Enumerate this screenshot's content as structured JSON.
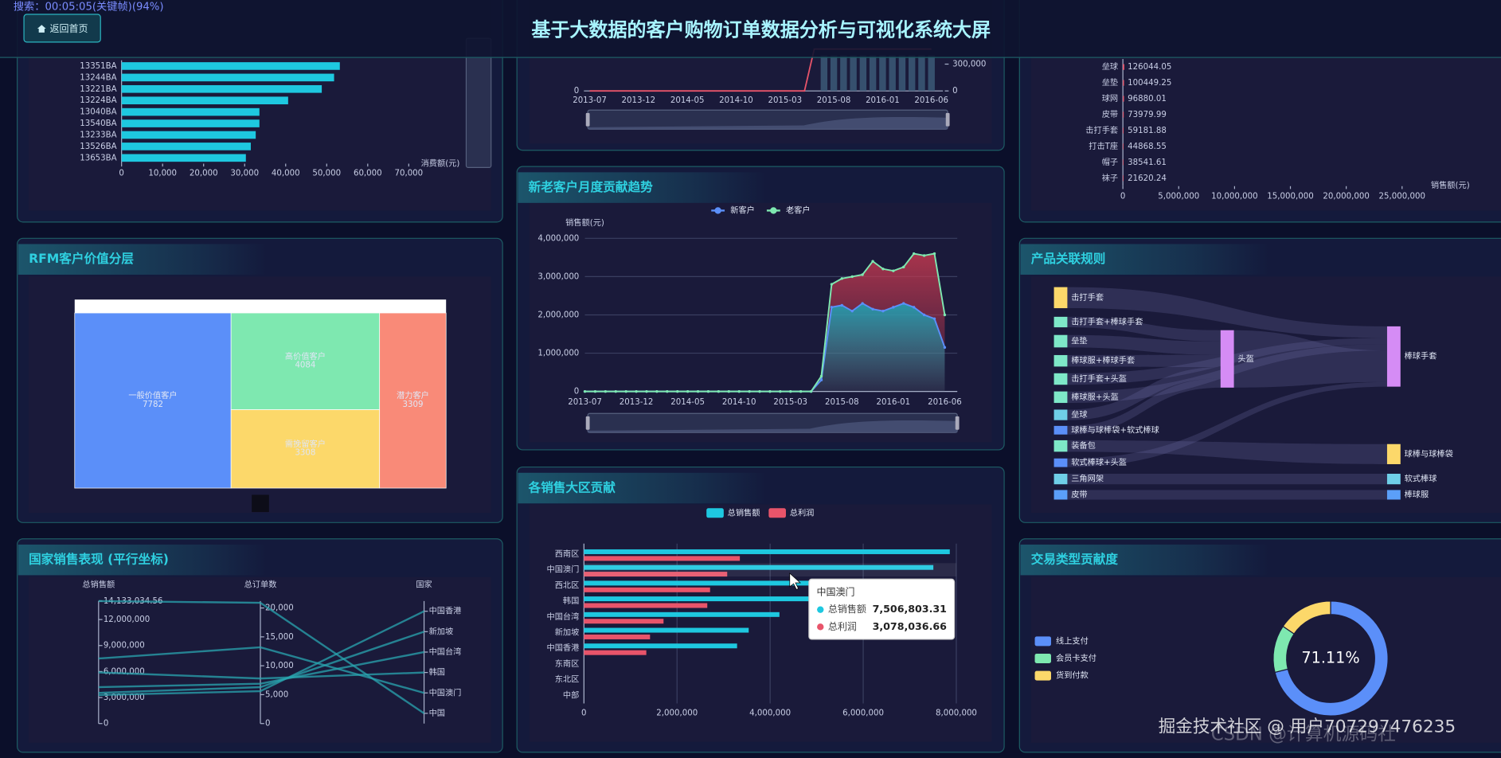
{
  "header": {
    "title": "基于大数据的客户购物订单数据分析与可视化系统大屏",
    "back_button": "返回首页",
    "player_overlay": "搜索：00:05:05(关键帧)(94%)"
  },
  "watermark": [
    "掘金技术社区 @ 用户707297476235",
    "CSDN @计算机源码社"
  ],
  "chart_data": [
    {
      "type": "hbar",
      "categories": [
        "13351BA",
        "13244BA",
        "13221BA",
        "13224BA",
        "13040BA",
        "13540BA",
        "13233BA",
        "13526BA",
        "13653BA"
      ],
      "values": [
        53200,
        51800,
        48800,
        40600,
        33600,
        33600,
        32700,
        31500,
        30300
      ],
      "color": "#1ec8e0",
      "xlabel": "消费额(元)",
      "xlim": [
        0,
        70000
      ],
      "xticks": [
        0,
        {
          "value": 10000,
          "label": "10,000"
        },
        {
          "value": 20000,
          "label": "20,000"
        },
        {
          "value": 30000,
          "label": "30,000"
        },
        {
          "value": 40000,
          "label": "40,000"
        },
        {
          "value": 50000,
          "label": "50,000"
        },
        {
          "value": 60000,
          "label": "60,000"
        },
        {
          "value": 70000,
          "label": "70,000"
        }
      ]
    },
    {
      "type": "line-bar",
      "categories": [
        "2013-07",
        null,
        null,
        null,
        null,
        "2013-12",
        null,
        null,
        null,
        null,
        "2014-05",
        null,
        null,
        null,
        null,
        "2014-10",
        null,
        null,
        null,
        null,
        "2015-03",
        null,
        null,
        null,
        null,
        "2015-08",
        null,
        null,
        null,
        null,
        "2016-01",
        null,
        null,
        null,
        null,
        "2016-06"
      ],
      "series": [
        {
          "type": "bar",
          "axis": "y2",
          "color": "#3c5a78",
          "values": [
            null,
            null,
            null,
            null,
            null,
            null,
            null,
            null,
            null,
            null,
            null,
            null,
            null,
            null,
            null,
            null,
            null,
            null,
            null,
            null,
            null,
            null,
            null,
            null,
            400000,
            400000,
            400000,
            400000,
            400000,
            400000,
            400000,
            400000,
            400000,
            400000,
            400000,
            400000
          ]
        },
        {
          "type": "line",
          "color": "#e8546a",
          "values": [
            0,
            0,
            0,
            0,
            0,
            0,
            0,
            0,
            0,
            0,
            0,
            0,
            0,
            0,
            0,
            0,
            0,
            0,
            0,
            0,
            0,
            0,
            0,
            500,
            500,
            500,
            500,
            500,
            500,
            500,
            500,
            500,
            500,
            500,
            500,
            500
          ]
        }
      ],
      "ylim": [
        0,
        400
      ],
      "yticks": [
        0
      ],
      "y2lim": [
        0,
        375000
      ],
      "y2ticks": [
        0,
        {
          "value": 300000,
          "label": "300,000"
        }
      ]
    },
    {
      "type": "area",
      "title": "新老客户月度贡献趋势",
      "ylabel": "销售额(元)",
      "categories": [
        "2013-07",
        null,
        null,
        null,
        null,
        "2013-12",
        null,
        null,
        null,
        null,
        "2014-05",
        null,
        null,
        null,
        null,
        "2014-10",
        null,
        null,
        null,
        null,
        "2015-03",
        null,
        null,
        null,
        null,
        "2015-08",
        null,
        null,
        null,
        null,
        "2016-01",
        null,
        null,
        null,
        null,
        "2016-06"
      ],
      "series": [
        {
          "name": "新客户",
          "color": "#5b8ff9",
          "area_color": "#1aa8b8",
          "values": [
            0,
            0,
            0,
            0,
            0,
            0,
            0,
            0,
            0,
            0,
            0,
            0,
            0,
            0,
            0,
            0,
            0,
            0,
            0,
            0,
            0,
            0,
            0,
            300000,
            2200000,
            2250000,
            2100000,
            2300000,
            2150000,
            2100000,
            2200000,
            2300000,
            2200000,
            2000000,
            1900000,
            1150000
          ]
        },
        {
          "name": "老客户",
          "color": "#7ee8b0",
          "area_color": "#c0384f",
          "values": [
            0,
            0,
            0,
            0,
            0,
            0,
            0,
            0,
            0,
            0,
            0,
            0,
            0,
            0,
            0,
            0,
            0,
            0,
            0,
            0,
            0,
            0,
            0,
            400000,
            2800000,
            2950000,
            3000000,
            3050000,
            3400000,
            3200000,
            3150000,
            3250000,
            3600000,
            3550000,
            3600000,
            2000000
          ]
        }
      ],
      "ylim": [
        0,
        4000000
      ],
      "yticks": [
        0,
        {
          "value": 1000000,
          "label": "1,000,000"
        },
        {
          "value": 2000000,
          "label": "2,000,000"
        },
        {
          "value": 3000000,
          "label": "3,000,000"
        },
        {
          "value": 4000000,
          "label": "4,000,000"
        }
      ],
      "grid": true
    },
    {
      "type": "treemap",
      "title": "RFM客户价值分层",
      "categories": [
        "一般价值客户",
        "高价值客户",
        "需挽留客户",
        "潜力客户"
      ],
      "values": [
        7782,
        4084,
        3308,
        3309
      ],
      "colors": [
        "#5b8ff9",
        "#7ee8b0",
        "#fcd86a",
        "#f98a78"
      ]
    },
    {
      "type": "parallel",
      "title": "国家销售表现 (平行坐标)",
      "axes": [
        "总销售额",
        "总订单数",
        "国家"
      ],
      "countries": [
        "中国香港",
        "新加坡",
        "中国台湾",
        "韩国",
        "中国澳门",
        "中国"
      ],
      "sales": [
        3290000,
        3540000,
        4200000,
        5900000,
        7506803.31,
        14133034.56
      ],
      "orders": [
        5600,
        6300,
        6900,
        7800,
        13200,
        20900
      ],
      "sales_lim": [
        0,
        14133034.56
      ],
      "sales_ticks": [
        0,
        {
          "value": 3000000,
          "label": "3,000,000"
        },
        {
          "value": 6000000,
          "label": "6,000,000"
        },
        {
          "value": 9000000,
          "label": "9,000,000"
        },
        {
          "value": 12000000,
          "label": "12,000,000"
        },
        {
          "value": 14133034.56,
          "label": "14,133,034.56"
        }
      ],
      "orders_lim": [
        0,
        21200
      ],
      "orders_ticks": [
        0,
        {
          "value": 5000,
          "label": "5,000"
        },
        {
          "value": 10000,
          "label": "10,000"
        },
        {
          "value": 15000,
          "label": "15,000"
        },
        {
          "value": 20000,
          "label": "20,000"
        }
      ],
      "color": "#2aa5b0"
    },
    {
      "type": "grouped-hbar",
      "title": "各销售大区贡献",
      "categories": [
        "西南区",
        "中国澳门",
        "西北区",
        "韩国",
        "中国台湾",
        "新加坡",
        "中国香港",
        "东南区",
        "东北区",
        "中部"
      ],
      "series": [
        {
          "name": "总销售额",
          "color": "#1ec8e0",
          "values": [
            7860000,
            7506803.31,
            5200000,
            5900000,
            4200000,
            3540000,
            3290000,
            0,
            0,
            0
          ],
          "value_labels": [
            null,
            "7,506,803.31",
            null,
            null,
            null,
            null,
            null,
            null,
            null,
            null
          ]
        },
        {
          "name": "总利润",
          "color": "#e8546a",
          "values": [
            3350000,
            3078036.66,
            2710000,
            2650000,
            1710000,
            1420000,
            1340000,
            0,
            0,
            0
          ],
          "value_labels": [
            null,
            "3,078,036.66",
            null,
            null,
            null,
            null,
            null,
            null,
            null,
            null
          ]
        }
      ],
      "xlim": [
        0,
        8000000
      ],
      "xticks": [
        0,
        {
          "value": 2000000,
          "label": "2,000,000"
        },
        {
          "value": 4000000,
          "label": "4,000,000"
        },
        {
          "value": 6000000,
          "label": "6,000,000"
        },
        {
          "value": 8000000,
          "label": "8,000,000"
        }
      ],
      "grid": true
    },
    {
      "type": "hbar",
      "categories": [
        "垒球",
        "垒垫",
        "球网",
        "皮带",
        "击打手套",
        "打击T座",
        "帽子",
        "袜子"
      ],
      "values": [
        126044.05,
        100449.25,
        96880.01,
        73979.99,
        59181.88,
        44868.55,
        38541.61,
        21620.24
      ],
      "color": "#e8546a",
      "xlabel": "销售额(元)",
      "xlim": [
        0,
        27000000
      ],
      "xticks": [
        0,
        {
          "value": 5000000,
          "label": "5,000,000"
        },
        {
          "value": 10000000,
          "label": "10,000,000"
        },
        {
          "value": 15000000,
          "label": "15,000,000"
        },
        {
          "value": 20000000,
          "label": "20,000,000"
        },
        {
          "value": 25000000,
          "label": "25,000,000"
        }
      ]
    },
    {
      "type": "sankey",
      "title": "产品关联规则",
      "nodes": [
        "击打手套",
        "击打手套+棒球手套",
        "垒垫",
        "棒球服+棒球手套",
        "击打手套+头盔",
        "棒球服+头盔",
        "垒球",
        "球棒与球棒袋+软式棒球",
        "装备包",
        "软式棒球+头盔",
        "三角网架",
        "皮带",
        "头盔",
        "棒球手套",
        "球棒与球棒袋",
        "软式棒球",
        "棒球服"
      ],
      "links": [
        {
          "source": "击打手套",
          "target": "棒球手套"
        },
        {
          "source": "击打手套+棒球手套",
          "target": "头盔"
        },
        {
          "source": "垒垫",
          "target": "头盔"
        },
        {
          "source": "棒球服+棒球手套",
          "target": "头盔"
        },
        {
          "source": "击打手套+头盔",
          "target": "棒球手套"
        },
        {
          "source": "棒球服+头盔",
          "target": "棒球手套"
        },
        {
          "source": "垒球",
          "target": "头盔"
        },
        {
          "source": "球棒与球棒袋+软式棒球",
          "target": "头盔"
        },
        {
          "source": "头盔",
          "target": "棒球手套"
        },
        {
          "source": "装备包",
          "target": "球棒与球棒袋"
        },
        {
          "source": "软式棒球+头盔",
          "target": "棒球手套"
        },
        {
          "source": "三角网架",
          "target": "软式棒球"
        },
        {
          "source": "皮带",
          "target": "棒球服"
        }
      ]
    },
    {
      "type": "donut",
      "title": "交易类型贡献度",
      "categories": [
        "线上支付",
        "会员卡支付",
        "货到付款"
      ],
      "values": [
        71.11,
        13.33,
        15.56
      ],
      "value_labels": [
        "71.11%",
        null,
        null
      ],
      "colors": [
        "#5b8ff9",
        "#7ee8b0",
        "#fcd86a"
      ]
    }
  ]
}
